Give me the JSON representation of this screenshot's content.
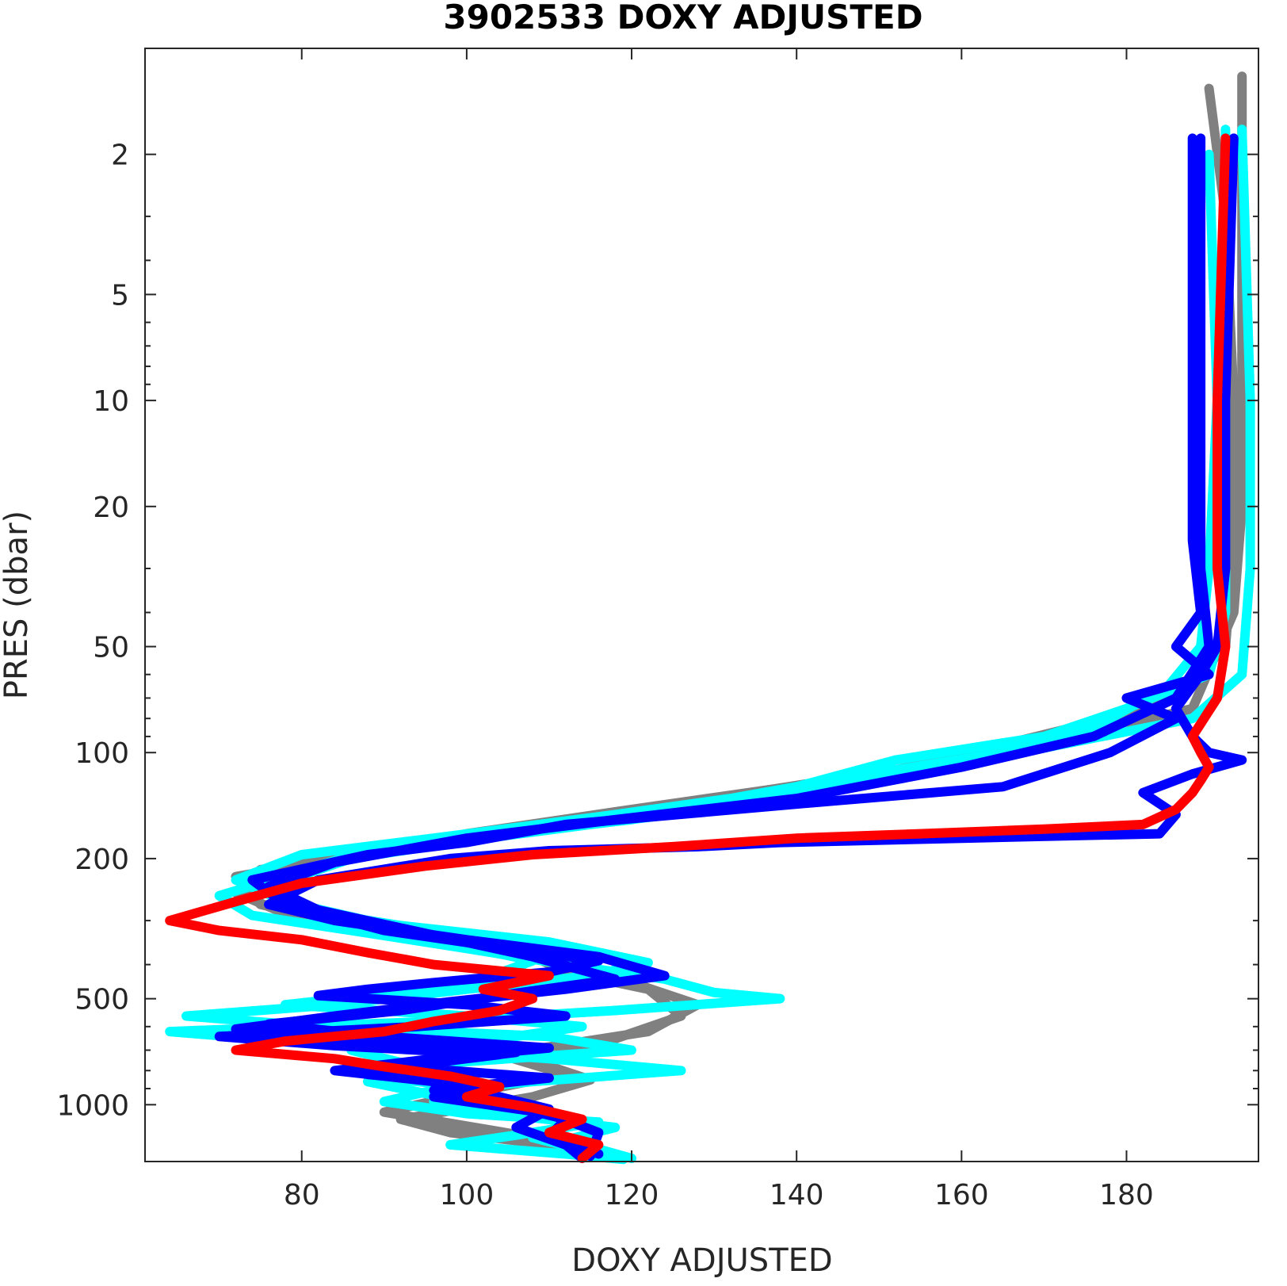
{
  "chart_data": {
    "type": "line",
    "title": "3902533  DOXY ADJUSTED",
    "xlabel": "DOXY ADJUSTED",
    "ylabel": "PRES (dbar)",
    "xlim": [
      61,
      196
    ],
    "ylim": [
      1,
      1450
    ],
    "yscale": "log",
    "y_reversed": true,
    "grid": false,
    "xticks": [
      80,
      100,
      120,
      140,
      160,
      180
    ],
    "yticks": [
      2,
      5,
      10,
      20,
      50,
      100,
      200,
      500,
      1000
    ],
    "colors": {
      "gray": "#808080",
      "cyan": "#00ffff",
      "blue": "#0000ff",
      "red": "#ff0000"
    },
    "series": [
      {
        "color": "#808080",
        "points": [
          [
            190,
            1.3
          ],
          [
            192,
            3
          ],
          [
            193,
            10
          ],
          [
            193,
            25
          ],
          [
            192,
            50
          ],
          [
            186,
            70
          ],
          [
            178,
            80
          ],
          [
            165,
            95
          ],
          [
            150,
            115
          ],
          [
            120,
            145
          ],
          [
            100,
            170
          ],
          [
            93,
            185
          ],
          [
            75,
            215
          ],
          [
            72,
            250
          ],
          [
            80,
            300
          ],
          [
            105,
            350
          ],
          [
            112,
            420
          ],
          [
            122,
            470
          ],
          [
            126,
            560
          ],
          [
            118,
            650
          ],
          [
            108,
            750
          ],
          [
            115,
            850
          ],
          [
            108,
            950
          ],
          [
            92,
            1100
          ],
          [
            98,
            1200
          ],
          [
            110,
            1300
          ],
          [
            116,
            1400
          ]
        ]
      },
      {
        "color": "#808080",
        "points": [
          [
            194,
            1.2
          ],
          [
            194,
            5
          ],
          [
            194,
            20
          ],
          [
            193,
            40
          ],
          [
            188,
            75
          ],
          [
            170,
            95
          ],
          [
            152,
            112
          ],
          [
            130,
            135
          ],
          [
            105,
            165
          ],
          [
            90,
            190
          ],
          [
            72,
            225
          ],
          [
            75,
            270
          ],
          [
            92,
            330
          ],
          [
            112,
            390
          ],
          [
            120,
            450
          ],
          [
            128,
            520
          ],
          [
            122,
            620
          ],
          [
            104,
            720
          ],
          [
            112,
            820
          ],
          [
            100,
            930
          ],
          [
            90,
            1050
          ],
          [
            100,
            1150
          ],
          [
            110,
            1260
          ],
          [
            118,
            1420
          ]
        ]
      },
      {
        "color": "#00ffff",
        "points": [
          [
            192,
            1.7
          ],
          [
            192,
            5
          ],
          [
            192,
            20
          ],
          [
            192,
            40
          ],
          [
            190,
            60
          ],
          [
            180,
            75
          ],
          [
            170,
            90
          ],
          [
            152,
            105
          ],
          [
            140,
            125
          ],
          [
            120,
            155
          ],
          [
            100,
            175
          ],
          [
            88,
            190
          ],
          [
            70,
            255
          ],
          [
            74,
            290
          ],
          [
            86,
            320
          ],
          [
            100,
            360
          ],
          [
            112,
            400
          ],
          [
            124,
            440
          ],
          [
            130,
            480
          ],
          [
            138,
            500
          ],
          [
            118,
            540
          ],
          [
            96,
            580
          ],
          [
            64,
            620
          ],
          [
            78,
            660
          ],
          [
            95,
            700
          ],
          [
            110,
            740
          ],
          [
            126,
            800
          ],
          [
            108,
            860
          ],
          [
            95,
            920
          ],
          [
            90,
            980
          ],
          [
            100,
            1060
          ],
          [
            116,
            1120
          ],
          [
            106,
            1220
          ],
          [
            98,
            1300
          ],
          [
            112,
            1380
          ],
          [
            119,
            1430
          ]
        ]
      },
      {
        "color": "#00ffff",
        "points": [
          [
            194,
            1.7
          ],
          [
            195,
            10
          ],
          [
            195,
            30
          ],
          [
            194,
            60
          ],
          [
            188,
            80
          ],
          [
            172,
            95
          ],
          [
            160,
            108
          ],
          [
            148,
            120
          ],
          [
            135,
            140
          ],
          [
            115,
            160
          ],
          [
            100,
            178
          ],
          [
            86,
            200
          ],
          [
            76,
            240
          ],
          [
            80,
            280
          ],
          [
            92,
            310
          ],
          [
            110,
            345
          ],
          [
            122,
            395
          ],
          [
            115,
            430
          ],
          [
            100,
            470
          ],
          [
            84,
            520
          ],
          [
            66,
            560
          ],
          [
            82,
            600
          ],
          [
            110,
            640
          ],
          [
            120,
            700
          ],
          [
            98,
            760
          ],
          [
            88,
            830
          ],
          [
            102,
            900
          ],
          [
            96,
            980
          ],
          [
            104,
            1060
          ],
          [
            118,
            1160
          ],
          [
            112,
            1260
          ],
          [
            120,
            1420
          ]
        ]
      },
      {
        "color": "#00ffff",
        "points": [
          [
            190,
            2
          ],
          [
            191,
            10
          ],
          [
            190,
            30
          ],
          [
            189,
            50
          ],
          [
            185,
            65
          ],
          [
            176,
            85
          ],
          [
            165,
            100
          ],
          [
            146,
            118
          ],
          [
            132,
            135
          ],
          [
            118,
            150
          ],
          [
            96,
            175
          ],
          [
            80,
            195
          ],
          [
            72,
            230
          ],
          [
            78,
            265
          ],
          [
            88,
            300
          ],
          [
            96,
            340
          ],
          [
            108,
            390
          ],
          [
            102,
            440
          ],
          [
            92,
            480
          ],
          [
            78,
            520
          ],
          [
            100,
            560
          ],
          [
            114,
            600
          ],
          [
            104,
            650
          ],
          [
            86,
            700
          ],
          [
            94,
            780
          ],
          [
            88,
            860
          ],
          [
            96,
            940
          ],
          [
            108,
            1020
          ],
          [
            114,
            1120
          ],
          [
            108,
            1240
          ],
          [
            116,
            1380
          ]
        ]
      },
      {
        "color": "#0000ff",
        "points": [
          [
            188,
            1.8
          ],
          [
            188,
            10
          ],
          [
            188,
            25
          ],
          [
            189,
            40
          ],
          [
            186,
            50
          ],
          [
            190,
            60
          ],
          [
            180,
            70
          ],
          [
            186,
            80
          ],
          [
            178,
            100
          ],
          [
            165,
            125
          ],
          [
            140,
            140
          ],
          [
            112,
            160
          ],
          [
            100,
            180
          ],
          [
            88,
            195
          ],
          [
            74,
            230
          ],
          [
            78,
            270
          ],
          [
            90,
            320
          ],
          [
            105,
            360
          ],
          [
            116,
            390
          ],
          [
            110,
            420
          ],
          [
            96,
            450
          ],
          [
            88,
            470
          ],
          [
            82,
            490
          ],
          [
            100,
            520
          ],
          [
            112,
            560
          ],
          [
            94,
            600
          ],
          [
            70,
            640
          ],
          [
            84,
            680
          ],
          [
            104,
            720
          ],
          [
            92,
            780
          ],
          [
            110,
            840
          ],
          [
            96,
            910
          ],
          [
            104,
            990
          ],
          [
            112,
            1100
          ],
          [
            110,
            1230
          ],
          [
            116,
            1380
          ]
        ]
      },
      {
        "color": "#0000ff",
        "points": [
          [
            189,
            1.8
          ],
          [
            189,
            10
          ],
          [
            189,
            30
          ],
          [
            190,
            50
          ],
          [
            186,
            70
          ],
          [
            176,
            90
          ],
          [
            160,
            110
          ],
          [
            140,
            135
          ],
          [
            118,
            155
          ],
          [
            100,
            175
          ],
          [
            84,
            205
          ],
          [
            76,
            240
          ],
          [
            82,
            280
          ],
          [
            96,
            330
          ],
          [
            108,
            380
          ],
          [
            118,
            440
          ],
          [
            104,
            490
          ],
          [
            92,
            540
          ],
          [
            76,
            590
          ],
          [
            90,
            640
          ],
          [
            110,
            690
          ],
          [
            96,
            740
          ],
          [
            84,
            800
          ],
          [
            98,
            870
          ],
          [
            104,
            950
          ],
          [
            110,
            1030
          ],
          [
            106,
            1160
          ],
          [
            112,
            1300
          ],
          [
            114,
            1420
          ]
        ]
      },
      {
        "color": "#0000ff",
        "points": [
          [
            193,
            1.8
          ],
          [
            192,
            10
          ],
          [
            192,
            30
          ],
          [
            191,
            50
          ],
          [
            189,
            60
          ],
          [
            186,
            75
          ],
          [
            188,
            90
          ],
          [
            190,
            100
          ],
          [
            194,
            105
          ],
          [
            188,
            115
          ],
          [
            182,
            130
          ],
          [
            186,
            150
          ],
          [
            184,
            170
          ],
          [
            160,
            175
          ],
          [
            138,
            180
          ],
          [
            128,
            185
          ],
          [
            110,
            190
          ],
          [
            98,
            200
          ],
          [
            82,
            230
          ],
          [
            76,
            270
          ],
          [
            84,
            300
          ],
          [
            100,
            340
          ],
          [
            116,
            380
          ],
          [
            124,
            430
          ],
          [
            112,
            470
          ],
          [
            98,
            510
          ],
          [
            84,
            560
          ],
          [
            72,
            610
          ],
          [
            90,
            660
          ],
          [
            106,
            710
          ],
          [
            96,
            760
          ],
          [
            88,
            820
          ],
          [
            102,
            880
          ],
          [
            96,
            950
          ],
          [
            110,
            1060
          ],
          [
            116,
            1200
          ],
          [
            115,
            1400
          ]
        ]
      },
      {
        "color": "#ff0000",
        "points": [
          [
            192,
            1.8
          ],
          [
            191,
            10
          ],
          [
            191,
            30
          ],
          [
            192,
            50
          ],
          [
            191,
            70
          ],
          [
            188,
            90
          ],
          [
            189,
            100
          ],
          [
            190,
            110
          ],
          [
            189,
            120
          ],
          [
            188,
            130
          ],
          [
            186,
            145
          ],
          [
            182,
            160
          ],
          [
            170,
            165
          ],
          [
            155,
            170
          ],
          [
            140,
            175
          ],
          [
            125,
            185
          ],
          [
            108,
            195
          ],
          [
            95,
            210
          ],
          [
            80,
            235
          ],
          [
            72,
            265
          ],
          [
            64,
            300
          ],
          [
            70,
            320
          ],
          [
            80,
            340
          ],
          [
            88,
            370
          ],
          [
            96,
            400
          ],
          [
            110,
            430
          ],
          [
            102,
            470
          ],
          [
            108,
            500
          ],
          [
            104,
            540
          ],
          [
            96,
            580
          ],
          [
            90,
            620
          ],
          [
            78,
            660
          ],
          [
            72,
            700
          ],
          [
            84,
            740
          ],
          [
            90,
            780
          ],
          [
            98,
            830
          ],
          [
            104,
            890
          ],
          [
            100,
            950
          ],
          [
            108,
            1020
          ],
          [
            114,
            1100
          ],
          [
            110,
            1200
          ],
          [
            116,
            1300
          ],
          [
            114,
            1420
          ]
        ]
      }
    ]
  }
}
